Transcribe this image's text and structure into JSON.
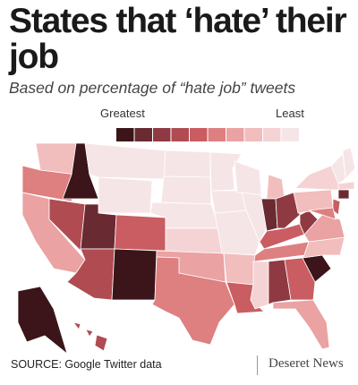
{
  "header": {
    "title": "States that ‘hate’ their job",
    "subtitle": "Based on percentage of “hate job” tweets"
  },
  "legend": {
    "high_label": "Greatest",
    "low_label": "Least",
    "colors": [
      "#3b1519",
      "#6a2a31",
      "#8f3a42",
      "#b04b52",
      "#c95d62",
      "#de7f80",
      "#eaa2a2",
      "#f1bdbd",
      "#f5d3d4",
      "#f6e5e7"
    ]
  },
  "footer": {
    "source": "SOURCE: Google Twitter data",
    "publisher": "Deseret News"
  }
}
